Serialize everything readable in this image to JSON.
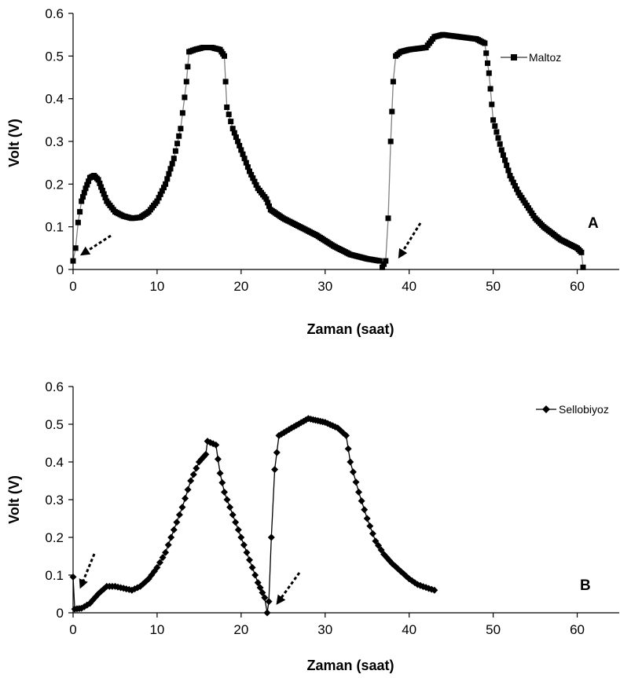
{
  "chart_data": [
    {
      "type": "scatter",
      "panel_label": "A",
      "xlabel": "Zaman (saat)",
      "ylabel": "Volt (V)",
      "xlim": [
        0,
        65
      ],
      "ylim": [
        0,
        0.6
      ],
      "xticks": [
        0,
        10,
        20,
        30,
        40,
        50,
        60
      ],
      "yticks": [
        0,
        0.1,
        0.2,
        0.3,
        0.4,
        0.5,
        0.6
      ],
      "legend": "top-right",
      "grid": false,
      "marker": "square",
      "series": [
        {
          "name": "Maltoz",
          "color": "#000000",
          "line_color": "#808080",
          "keypoints": [
            [
              0,
              0.02
            ],
            [
              0.3,
              0.05
            ],
            [
              0.6,
              0.11
            ],
            [
              1.0,
              0.16
            ],
            [
              1.5,
              0.19
            ],
            [
              2.0,
              0.215
            ],
            [
              2.5,
              0.22
            ],
            [
              3.0,
              0.21
            ],
            [
              3.5,
              0.185
            ],
            [
              4.0,
              0.16
            ],
            [
              5.0,
              0.135
            ],
            [
              6.0,
              0.125
            ],
            [
              7.0,
              0.12
            ],
            [
              8.0,
              0.122
            ],
            [
              9.0,
              0.135
            ],
            [
              10.0,
              0.16
            ],
            [
              11.0,
              0.2
            ],
            [
              12.0,
              0.26
            ],
            [
              12.8,
              0.33
            ],
            [
              13.5,
              0.44
            ],
            [
              13.8,
              0.51
            ],
            [
              14.5,
              0.515
            ],
            [
              15.5,
              0.52
            ],
            [
              16.5,
              0.52
            ],
            [
              17.5,
              0.515
            ],
            [
              18.0,
              0.5
            ],
            [
              18.3,
              0.38
            ],
            [
              19.0,
              0.33
            ],
            [
              20.0,
              0.28
            ],
            [
              21.0,
              0.23
            ],
            [
              22.0,
              0.19
            ],
            [
              23.0,
              0.165
            ],
            [
              23.5,
              0.14
            ],
            [
              25.0,
              0.12
            ],
            [
              27.0,
              0.1
            ],
            [
              29.0,
              0.08
            ],
            [
              31.0,
              0.055
            ],
            [
              33.0,
              0.035
            ],
            [
              35.0,
              0.025
            ],
            [
              36.5,
              0.02
            ],
            [
              36.8,
              0.005
            ],
            [
              37.2,
              0.02
            ],
            [
              37.5,
              0.12
            ],
            [
              37.8,
              0.3
            ],
            [
              38.1,
              0.44
            ],
            [
              38.4,
              0.5
            ],
            [
              39.0,
              0.51
            ],
            [
              40.0,
              0.515
            ],
            [
              42.0,
              0.52
            ],
            [
              43.0,
              0.545
            ],
            [
              44.0,
              0.55
            ],
            [
              46.0,
              0.545
            ],
            [
              48.0,
              0.54
            ],
            [
              49.0,
              0.53
            ],
            [
              49.5,
              0.46
            ],
            [
              50.0,
              0.35
            ],
            [
              51.0,
              0.28
            ],
            [
              52.0,
              0.22
            ],
            [
              53.0,
              0.18
            ],
            [
              54.0,
              0.15
            ],
            [
              55.0,
              0.12
            ],
            [
              56.0,
              0.1
            ],
            [
              57.0,
              0.085
            ],
            [
              58.0,
              0.07
            ],
            [
              59.0,
              0.06
            ],
            [
              60.0,
              0.05
            ],
            [
              60.5,
              0.04
            ],
            [
              60.7,
              0.005
            ]
          ],
          "step": 0.2
        }
      ]
    },
    {
      "type": "scatter",
      "panel_label": "B",
      "xlabel": "Zaman (saat)",
      "ylabel": "Volt (V)",
      "xlim": [
        0,
        65
      ],
      "ylim": [
        0,
        0.6
      ],
      "xticks": [
        0,
        10,
        20,
        30,
        40,
        50,
        60
      ],
      "yticks": [
        0,
        0.1,
        0.2,
        0.3,
        0.4,
        0.5,
        0.6
      ],
      "legend": "top-right",
      "grid": false,
      "marker": "diamond",
      "series": [
        {
          "name": "Sellobiyoz",
          "color": "#000000",
          "line_color": "#000000",
          "keypoints": [
            [
              0,
              0.095
            ],
            [
              0.2,
              0.01
            ],
            [
              1.0,
              0.012
            ],
            [
              2.0,
              0.025
            ],
            [
              3.0,
              0.05
            ],
            [
              4.0,
              0.07
            ],
            [
              5.0,
              0.07
            ],
            [
              6.0,
              0.065
            ],
            [
              7.0,
              0.06
            ],
            [
              8.0,
              0.07
            ],
            [
              9.0,
              0.09
            ],
            [
              10.0,
              0.12
            ],
            [
              11.0,
              0.16
            ],
            [
              12.0,
              0.22
            ],
            [
              13.0,
              0.28
            ],
            [
              14.0,
              0.35
            ],
            [
              15.0,
              0.4
            ],
            [
              15.8,
              0.42
            ],
            [
              16.0,
              0.455
            ],
            [
              17.0,
              0.445
            ],
            [
              17.5,
              0.37
            ],
            [
              18.0,
              0.32
            ],
            [
              19.0,
              0.26
            ],
            [
              20.0,
              0.2
            ],
            [
              21.0,
              0.14
            ],
            [
              22.0,
              0.08
            ],
            [
              22.8,
              0.04
            ],
            [
              23.1,
              0.0
            ],
            [
              23.3,
              0.03
            ],
            [
              23.6,
              0.2
            ],
            [
              24.0,
              0.38
            ],
            [
              24.5,
              0.47
            ],
            [
              26.0,
              0.49
            ],
            [
              28.0,
              0.515
            ],
            [
              30.0,
              0.505
            ],
            [
              31.5,
              0.49
            ],
            [
              32.5,
              0.47
            ],
            [
              33.0,
              0.4
            ],
            [
              34.0,
              0.32
            ],
            [
              35.0,
              0.25
            ],
            [
              36.0,
              0.19
            ],
            [
              37.0,
              0.155
            ],
            [
              38.0,
              0.13
            ],
            [
              39.0,
              0.11
            ],
            [
              40.0,
              0.09
            ],
            [
              41.0,
              0.075
            ],
            [
              42.0,
              0.067
            ],
            [
              43.0,
              0.06
            ]
          ],
          "step": 0.3
        }
      ]
    }
  ]
}
